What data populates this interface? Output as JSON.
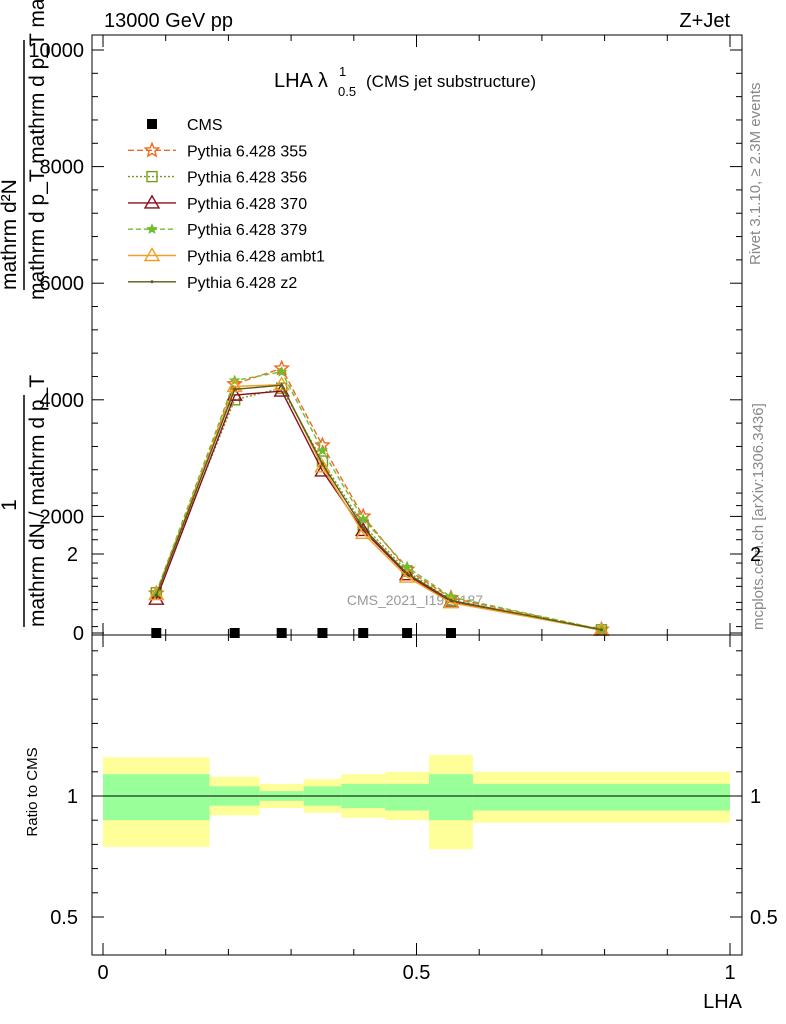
{
  "header": {
    "left": "13000 GeV pp",
    "right": "Z+Jet"
  },
  "side_labels": {
    "rivet": "Rivet 3.1.10, ≥ 2.3M events",
    "mcplots": "mcplots.cern.ch [arXiv:1306.3436]"
  },
  "watermark": "CMS_2021_I1920187",
  "chart_data": [
    {
      "type": "line",
      "title": "LHA",
      "title_superscript": "1",
      "title_subscript": "0.5",
      "title_suffix": "(CMS jet substructure)",
      "ylabel_numerator": "mathrm d²N",
      "ylabel_denominator": "mathrm d p_T mathrm d p_T mathrm d lambda",
      "ylabel_prefix_num": "1",
      "ylabel_prefix_den": "mathrm dN / mathrm d p_T",
      "xlim": [
        0,
        1
      ],
      "ylim": [
        0,
        10200
      ],
      "y_ticks": [
        0,
        2000,
        4000,
        6000,
        8000,
        10000
      ],
      "y_tick_labels": [
        "0",
        "2000",
        "4000",
        "6000",
        "8000",
        "10000"
      ],
      "x": [
        0.085,
        0.21,
        0.285,
        0.35,
        0.415,
        0.485,
        0.555,
        0.795
      ],
      "series": [
        {
          "name": "CMS",
          "color": "#000000",
          "marker": "square",
          "dash": "none",
          "values": [
            0,
            0,
            0,
            0,
            0,
            0,
            0,
            null
          ]
        },
        {
          "name": "Pythia 6.428 355",
          "color": "#ee6a1f",
          "marker": "star",
          "dash": "6,3",
          "values": [
            680,
            4270,
            4540,
            3220,
            2000,
            1090,
            600,
            60
          ]
        },
        {
          "name": "Pythia 6.428 356",
          "color": "#7a9a1e",
          "marker": "square-open",
          "dash": "2,2",
          "values": [
            690,
            4000,
            4200,
            2950,
            1850,
            1060,
            560,
            55
          ]
        },
        {
          "name": "Pythia 6.428 370",
          "color": "#8b0d1a",
          "marker": "triangle-open",
          "dash": "none",
          "values": [
            580,
            4080,
            4150,
            2780,
            1760,
            1000,
            530,
            50
          ]
        },
        {
          "name": "Pythia 6.428 379",
          "color": "#6ebd2e",
          "marker": "star-small",
          "dash": "5,3",
          "values": [
            700,
            4330,
            4480,
            3130,
            1950,
            1130,
            620,
            60
          ]
        },
        {
          "name": "Pythia 6.428 ambt1",
          "color": "#f0a024",
          "marker": "triangle-open",
          "dash": "none",
          "values": [
            660,
            4230,
            4260,
            2850,
            1710,
            960,
            520,
            50
          ]
        },
        {
          "name": "Pythia 6.428 z2",
          "color": "#5a5a12",
          "marker": "dot",
          "dash": "none",
          "values": [
            650,
            4180,
            4250,
            2900,
            1800,
            1020,
            560,
            55
          ]
        }
      ]
    },
    {
      "type": "area",
      "ylabel": "Ratio to CMS",
      "xlabel": "LHA",
      "xlim": [
        0,
        1
      ],
      "ylim": [
        0.4,
        2.3
      ],
      "x_ticks": [
        0,
        0.5,
        1
      ],
      "x_tick_labels": [
        "0",
        "0.5",
        "1"
      ],
      "y_ticks": [
        0.5,
        1,
        2
      ],
      "y_tick_labels": [
        "0.5",
        "1",
        "2"
      ],
      "bins": [
        [
          0,
          0.17
        ],
        [
          0.17,
          0.25
        ],
        [
          0.25,
          0.32
        ],
        [
          0.32,
          0.38
        ],
        [
          0.38,
          0.45
        ],
        [
          0.45,
          0.52
        ],
        [
          0.52,
          0.59
        ],
        [
          0.59,
          1.0
        ]
      ],
      "stat_band": [
        [
          0.9,
          1.09
        ],
        [
          0.96,
          1.04
        ],
        [
          0.98,
          1.02
        ],
        [
          0.96,
          1.04
        ],
        [
          0.95,
          1.05
        ],
        [
          0.94,
          1.05
        ],
        [
          0.9,
          1.09
        ],
        [
          0.94,
          1.05
        ]
      ],
      "total_band": [
        [
          0.79,
          1.16
        ],
        [
          0.92,
          1.08
        ],
        [
          0.95,
          1.05
        ],
        [
          0.93,
          1.07
        ],
        [
          0.91,
          1.09
        ],
        [
          0.9,
          1.1
        ],
        [
          0.78,
          1.17
        ],
        [
          0.89,
          1.1
        ]
      ],
      "stat_color": "#99ff99",
      "total_color": "#ffff99"
    }
  ]
}
